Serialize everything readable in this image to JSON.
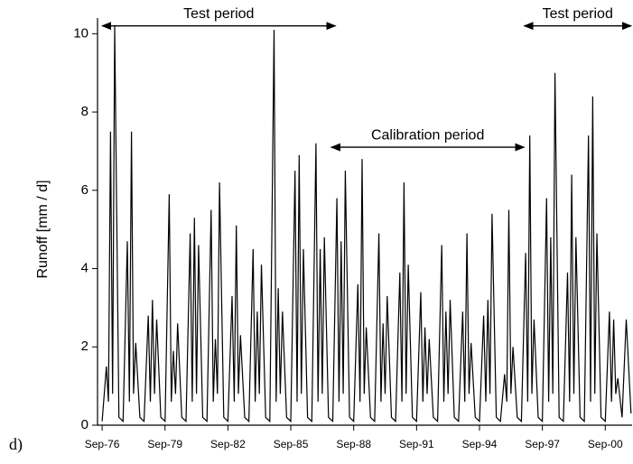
{
  "chart_data": {
    "type": "line",
    "panel_label": "d)",
    "y_label": "Runoff [mm / d]",
    "x": [
      1976.67,
      1976.87,
      1976.97,
      1977.07,
      1977.17,
      1977.27,
      1977.47,
      1977.67,
      1977.87,
      1977.97,
      1978.07,
      1978.17,
      1978.27,
      1978.47,
      1978.67,
      1978.87,
      1978.97,
      1979.07,
      1979.17,
      1979.27,
      1979.47,
      1979.67,
      1979.87,
      1979.97,
      1980.07,
      1980.17,
      1980.27,
      1980.47,
      1980.67,
      1980.87,
      1980.97,
      1981.07,
      1981.17,
      1981.27,
      1981.47,
      1981.67,
      1981.87,
      1981.97,
      1982.07,
      1982.17,
      1982.27,
      1982.47,
      1982.67,
      1982.87,
      1982.97,
      1983.07,
      1983.17,
      1983.27,
      1983.47,
      1983.67,
      1983.87,
      1983.97,
      1984.07,
      1984.17,
      1984.27,
      1984.47,
      1984.67,
      1984.87,
      1984.97,
      1985.07,
      1985.17,
      1985.27,
      1985.47,
      1985.67,
      1985.87,
      1985.97,
      1986.07,
      1986.17,
      1986.27,
      1986.47,
      1986.67,
      1986.87,
      1986.97,
      1987.07,
      1987.17,
      1987.27,
      1987.47,
      1987.67,
      1987.87,
      1987.97,
      1988.07,
      1988.17,
      1988.27,
      1988.47,
      1988.67,
      1988.87,
      1988.97,
      1989.07,
      1989.17,
      1989.27,
      1989.47,
      1989.67,
      1989.87,
      1989.97,
      1990.07,
      1990.17,
      1990.27,
      1990.47,
      1990.67,
      1990.87,
      1990.97,
      1991.07,
      1991.17,
      1991.27,
      1991.47,
      1991.67,
      1991.87,
      1991.97,
      1992.07,
      1992.17,
      1992.27,
      1992.47,
      1992.67,
      1992.87,
      1992.97,
      1993.07,
      1993.17,
      1993.27,
      1993.47,
      1993.67,
      1993.87,
      1993.97,
      1994.07,
      1994.17,
      1994.27,
      1994.47,
      1994.67,
      1994.87,
      1994.97,
      1995.07,
      1995.17,
      1995.27,
      1995.47,
      1995.67,
      1995.87,
      1995.97,
      1996.07,
      1996.17,
      1996.27,
      1996.47,
      1996.67,
      1996.87,
      1996.97,
      1997.07,
      1997.17,
      1997.27,
      1997.47,
      1997.67,
      1997.87,
      1997.97,
      1998.07,
      1998.17,
      1998.27,
      1998.47,
      1998.67,
      1998.87,
      1998.97,
      1999.07,
      1999.17,
      1999.27,
      1999.47,
      1999.67,
      1999.87,
      1999.97,
      2000.07,
      2000.17,
      2000.27,
      2000.47,
      2000.67,
      2000.87,
      2000.97,
      2001.07,
      2001.17,
      2001.27,
      2001.47,
      2001.67,
      2001.9
    ],
    "series": [
      {
        "name": "Runoff",
        "color": "#000000",
        "values": [
          0.1,
          1.5,
          0.6,
          7.5,
          0.8,
          10.2,
          0.2,
          0.1,
          4.7,
          0.6,
          7.5,
          0.8,
          2.1,
          0.2,
          0.1,
          2.8,
          0.6,
          3.2,
          0.8,
          2.7,
          0.2,
          0.1,
          5.9,
          0.6,
          1.9,
          0.8,
          2.6,
          0.2,
          0.1,
          4.9,
          0.6,
          5.3,
          0.8,
          4.6,
          0.2,
          0.1,
          5.5,
          0.6,
          2.2,
          0.8,
          6.2,
          0.2,
          0.1,
          3.3,
          0.6,
          5.1,
          0.8,
          2.3,
          0.2,
          0.1,
          4.5,
          0.6,
          2.9,
          0.8,
          4.1,
          0.2,
          0.1,
          10.1,
          0.6,
          3.5,
          0.8,
          2.9,
          0.2,
          0.1,
          6.5,
          0.6,
          6.9,
          0.8,
          4.5,
          0.2,
          0.1,
          7.2,
          0.6,
          4.5,
          0.8,
          4.8,
          0.2,
          0.1,
          5.8,
          0.6,
          4.7,
          0.8,
          6.5,
          0.2,
          0.1,
          3.6,
          0.6,
          6.8,
          0.8,
          2.5,
          0.2,
          0.1,
          4.9,
          0.6,
          2.6,
          0.8,
          3.3,
          0.2,
          0.1,
          3.9,
          0.6,
          6.2,
          0.8,
          4.1,
          0.2,
          0.1,
          3.4,
          0.6,
          2.5,
          0.8,
          2.2,
          0.2,
          0.1,
          4.6,
          0.6,
          2.9,
          0.8,
          3.2,
          0.2,
          0.1,
          2.9,
          0.6,
          4.9,
          0.8,
          2.1,
          0.2,
          0.1,
          2.8,
          0.6,
          3.2,
          0.8,
          5.4,
          0.2,
          0.1,
          1.3,
          0.6,
          5.5,
          0.8,
          2.0,
          0.2,
          0.1,
          4.4,
          0.6,
          7.4,
          0.8,
          2.7,
          0.2,
          0.1,
          5.8,
          0.6,
          4.8,
          0.8,
          9.0,
          0.2,
          0.1,
          3.9,
          0.6,
          6.4,
          0.8,
          4.8,
          0.2,
          0.1,
          7.4,
          0.6,
          8.4,
          0.8,
          4.9,
          0.2,
          0.1,
          2.9,
          0.6,
          2.7,
          0.8,
          1.2,
          0.2,
          2.7,
          0.3
        ]
      }
    ],
    "xlim": [
      1976.45,
      2001.95
    ],
    "xticks": [
      {
        "value": 1976.67,
        "label": "Sep-76"
      },
      {
        "value": 1979.67,
        "label": "Sep-79"
      },
      {
        "value": 1982.67,
        "label": "Sep-82"
      },
      {
        "value": 1985.67,
        "label": "Sep-85"
      },
      {
        "value": 1988.67,
        "label": "Sep-88"
      },
      {
        "value": 1991.67,
        "label": "Sep-91"
      },
      {
        "value": 1994.67,
        "label": "Sep-94"
      },
      {
        "value": 1997.67,
        "label": "Sep-97"
      },
      {
        "value": 2000.67,
        "label": "Sep-00"
      }
    ],
    "ylim": [
      0,
      10.4
    ],
    "yticks": [
      0,
      2,
      4,
      6,
      8,
      10
    ],
    "annotations": [
      {
        "text": "Test period",
        "x": [
          1976.67,
          1987.8
        ],
        "y": 10.2
      },
      {
        "text": "Calibration period",
        "x": [
          1987.6,
          1996.8
        ],
        "y": 7.1
      },
      {
        "text": "Test period",
        "x": [
          1996.8,
          2001.95
        ],
        "y": 10.2
      }
    ]
  }
}
